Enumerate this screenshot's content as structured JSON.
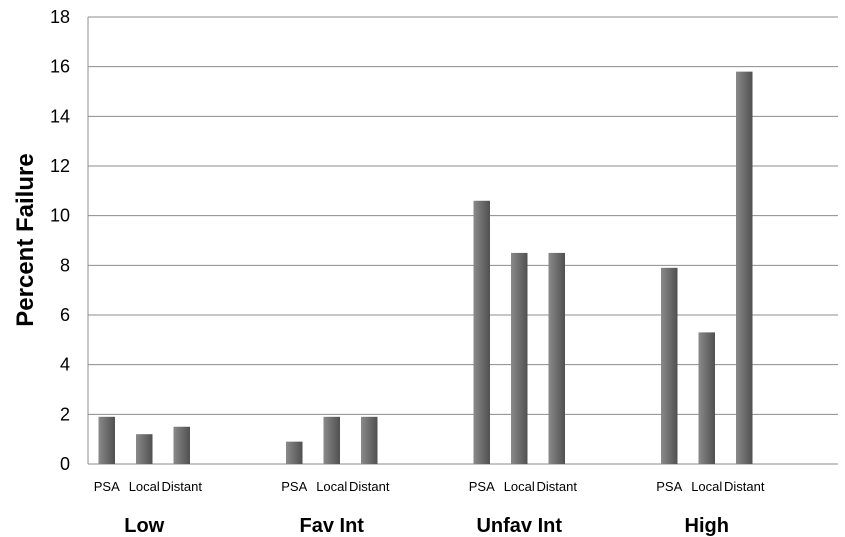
{
  "chart_data": {
    "type": "bar",
    "ylabel": "Percent Failure",
    "xlabel": "",
    "ylim": [
      0,
      18
    ],
    "yticks": [
      0,
      2,
      4,
      6,
      8,
      10,
      12,
      14,
      16,
      18
    ],
    "grid": true,
    "legend": "none",
    "bar_color": "#6e6e6e",
    "groups": [
      {
        "label": "Low",
        "categories": [
          "PSA",
          "Local",
          "Distant"
        ],
        "values": [
          1.9,
          1.2,
          1.5
        ]
      },
      {
        "label": "Fav Int",
        "categories": [
          "PSA",
          "Local",
          "Distant"
        ],
        "values": [
          0.9,
          1.9,
          1.9
        ]
      },
      {
        "label": "Unfav Int",
        "categories": [
          "PSA",
          "Local",
          "Distant"
        ],
        "values": [
          10.6,
          8.5,
          8.5
        ]
      },
      {
        "label": "High",
        "categories": [
          "PSA",
          "Local",
          "Distant"
        ],
        "values": [
          7.9,
          5.3,
          15.8
        ]
      }
    ]
  }
}
